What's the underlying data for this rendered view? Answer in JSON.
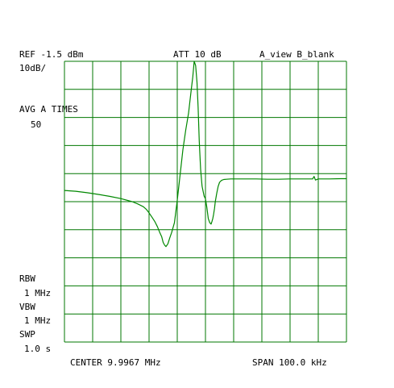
{
  "header": {
    "ref": "REF -1.5 dBm",
    "att": "ATT 10 dB",
    "view": "A_view B_blank"
  },
  "left_panel": {
    "scale": "10dB/",
    "avg_label": "AVG A TIMES",
    "avg_value": "50",
    "rbw_label": "RBW",
    "rbw_value": "1 MHz",
    "vbw_label": "VBW",
    "vbw_value": "1 MHz",
    "swp_label": "SWP",
    "swp_value": "1.0 s"
  },
  "footer": {
    "center": "CENTER 9.9967 MHz",
    "span": "SPAN 100.0 kHz"
  },
  "colors": {
    "grid": "#007700",
    "trace": "#008800",
    "text": "#000000",
    "background": "#ffffff"
  },
  "chart_data": {
    "type": "line",
    "xlabel": "",
    "ylabel": "",
    "xlim": [
      9.9467,
      10.0467
    ],
    "ylim": [
      -101.5,
      -1.5
    ],
    "x_unit": "MHz",
    "y_unit": "dBm",
    "grid": true,
    "grid_divisions": [
      10,
      10
    ],
    "series": [
      {
        "x": [
          9.9467,
          9.9507,
          9.9547,
          9.9587,
          9.9627,
          9.9667,
          9.9707,
          9.9727,
          9.9747,
          9.9757,
          9.9767,
          9.9777,
          9.9787,
          9.9797,
          9.9805,
          9.9812,
          9.9817,
          9.9822,
          9.9827,
          9.9834,
          9.984,
          9.9847,
          9.9857,
          9.9867,
          9.9877,
          9.9887,
          9.9897,
          9.9907,
          9.9915,
          9.9922,
          9.9927,
          9.9932,
          9.9937,
          9.9941,
          9.9945,
          9.995,
          9.9955,
          9.9962,
          9.9967,
          9.9972,
          9.9977,
          9.9982,
          9.9987,
          9.999,
          9.9993,
          9.9996,
          9.9999,
          10.0002,
          10.0007,
          10.0012,
          10.0017,
          10.0024,
          10.0032,
          10.0042,
          10.0057,
          10.0077,
          10.0107,
          10.0147,
          10.0187,
          10.0227,
          10.0267,
          10.0307,
          10.0337,
          10.0347,
          10.0352,
          10.0357,
          10.0367,
          10.0407,
          10.0447,
          10.0467
        ],
        "y": [
          -47.5,
          -47.8,
          -48.3,
          -48.9,
          -49.6,
          -50.4,
          -51.5,
          -52.3,
          -53.3,
          -54.2,
          -55.5,
          -57.0,
          -58.5,
          -60.5,
          -62.5,
          -64.0,
          -66.0,
          -67.0,
          -67.5,
          -66.5,
          -64.5,
          -62.5,
          -59.0,
          -51.0,
          -42.0,
          -33.0,
          -26.0,
          -20.0,
          -13.0,
          -7.0,
          -1.5,
          -3.0,
          -9.0,
          -18.0,
          -30.0,
          -40.0,
          -46.0,
          -49.5,
          -50.5,
          -53.5,
          -57.5,
          -59.0,
          -59.5,
          -58.5,
          -57.5,
          -56.0,
          -54.0,
          -51.5,
          -48.5,
          -46.0,
          -44.6,
          -43.9,
          -43.6,
          -43.5,
          -43.4,
          -43.4,
          -43.4,
          -43.4,
          -43.5,
          -43.5,
          -43.4,
          -43.4,
          -43.4,
          -43.4,
          -42.5,
          -43.8,
          -43.4,
          -43.4,
          -43.3,
          -43.3
        ]
      }
    ]
  }
}
